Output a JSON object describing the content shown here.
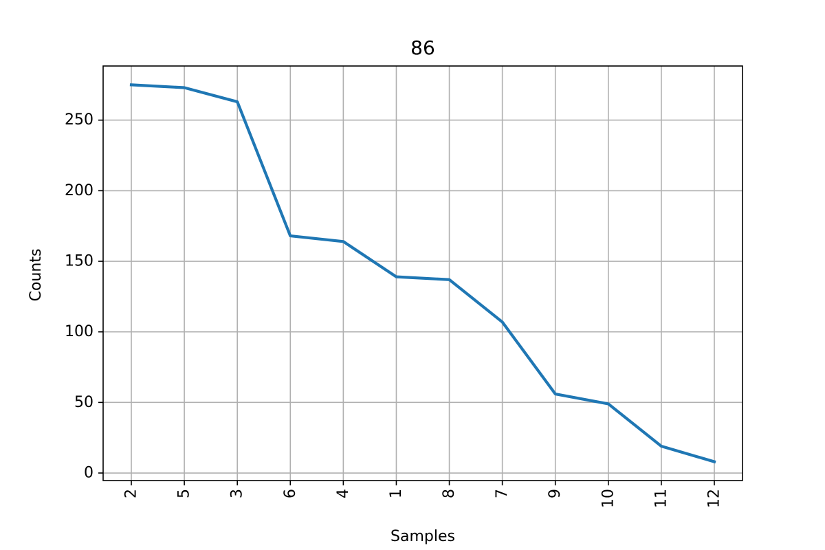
{
  "chart_data": {
    "type": "line",
    "title": "86",
    "xlabel": "Samples",
    "ylabel": "Counts",
    "categories": [
      "2",
      "5",
      "3",
      "6",
      "4",
      "1",
      "8",
      "7",
      "9",
      "10",
      "11",
      "12"
    ],
    "series": [
      {
        "values": [
          275,
          273,
          263,
          168,
          164,
          139,
          137,
          107,
          56,
          49,
          19,
          8
        ],
        "color": "#1f77b4"
      }
    ],
    "yticks": [
      0,
      50,
      100,
      150,
      200,
      250
    ],
    "ylim": [
      -5.35,
      288.35
    ],
    "grid": true,
    "x_tick_rotation": "vertical"
  }
}
